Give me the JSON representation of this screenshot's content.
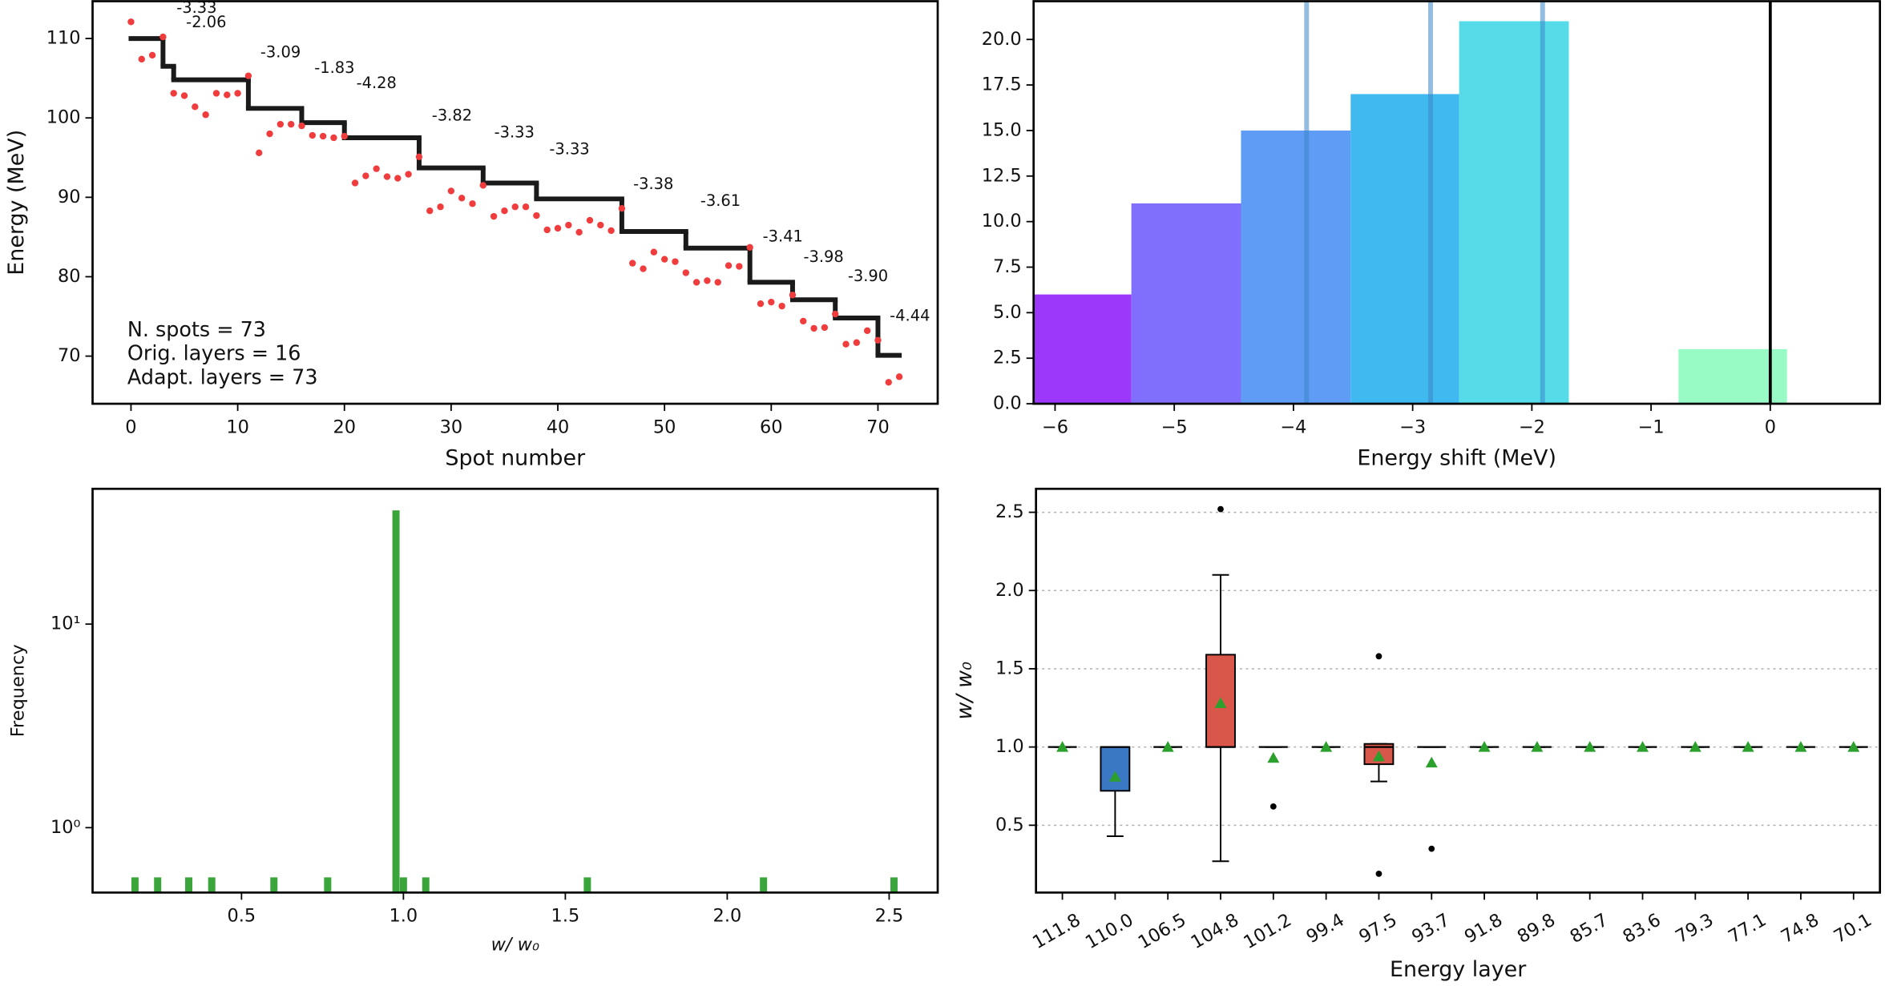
{
  "chart_data": [
    {
      "type": "line",
      "xlabel": "Spot number",
      "ylabel": "Energy (MeV)",
      "xlim": [
        -3.6,
        75.6
      ],
      "ylim": [
        64,
        114.7
      ],
      "xticks": [
        0,
        10,
        20,
        30,
        40,
        50,
        60,
        70
      ],
      "yticks": [
        70,
        80,
        90,
        100,
        110
      ],
      "step": {
        "bins": [
          0,
          3,
          4,
          11,
          16,
          20,
          27,
          33,
          38,
          46,
          52,
          58,
          62,
          66,
          70,
          72
        ],
        "values": [
          110.0,
          106.5,
          104.8,
          101.2,
          99.4,
          97.5,
          93.7,
          91.8,
          89.8,
          85.7,
          83.6,
          79.3,
          77.1,
          74.8,
          70.1
        ],
        "color": "#1a1a1a"
      },
      "points": {
        "x": [
          0,
          1,
          2,
          3,
          4,
          5,
          6,
          7,
          8,
          9,
          10,
          11,
          12,
          13,
          14,
          15,
          16,
          17,
          18,
          19,
          20,
          21,
          22,
          23,
          24,
          25,
          26,
          27,
          28,
          29,
          30,
          31,
          32,
          33,
          34,
          35,
          36,
          37,
          38,
          39,
          40,
          41,
          42,
          43,
          44,
          45,
          46,
          47,
          48,
          49,
          50,
          51,
          52,
          53,
          54,
          55,
          56,
          57,
          58,
          59,
          60,
          61,
          62,
          63,
          64,
          65,
          66,
          67,
          68,
          69,
          70,
          71,
          72
        ],
        "values": [
          112.1,
          107.4,
          107.9,
          110.2,
          103.1,
          102.8,
          101.4,
          100.4,
          103.1,
          102.9,
          103.1,
          105.3,
          95.6,
          98.0,
          99.2,
          99.2,
          99.0,
          97.8,
          97.7,
          97.5,
          97.7,
          91.8,
          92.7,
          93.6,
          92.6,
          92.4,
          92.9,
          95.1,
          88.3,
          88.8,
          90.8,
          89.9,
          89.2,
          91.5,
          87.6,
          88.3,
          88.8,
          88.8,
          87.7,
          85.9,
          86.1,
          86.5,
          85.6,
          87.1,
          86.5,
          85.8,
          88.6,
          81.7,
          81.0,
          83.1,
          82.2,
          81.9,
          80.5,
          79.3,
          79.5,
          79.3,
          81.4,
          81.3,
          83.7,
          76.6,
          76.8,
          76.3,
          77.7,
          74.4,
          73.5,
          73.6,
          75.3,
          71.5,
          71.7,
          73.2,
          72.0,
          66.7,
          67.4
        ],
        "color": "#f03c3c"
      },
      "annotations": [
        "-3.33",
        "-2.06",
        "-3.09",
        "-1.83",
        "-4.28",
        "-3.82",
        "-3.33",
        "-3.33",
        "-3.38",
        "-3.61",
        "-3.41",
        "-3.98",
        "-3.90",
        "-4.44"
      ],
      "text_box": [
        "N. spots = 73",
        "Orig. layers = 16",
        "Adapt. layers = 73"
      ]
    },
    {
      "type": "histogram",
      "xlabel": "Energy shift (MeV)",
      "xlim": [
        -6.18,
        0.92
      ],
      "ylim": [
        0,
        22.1
      ],
      "xticks": [
        {
          "value": -6,
          "label": "−6"
        },
        {
          "value": -5,
          "label": "−5"
        },
        {
          "value": -4,
          "label": "−4"
        },
        {
          "value": -3,
          "label": "−3"
        },
        {
          "value": -2,
          "label": "−2"
        },
        {
          "value": -1,
          "label": "−1"
        },
        0
      ],
      "yticks": [
        {
          "value": 0,
          "label": "0.0"
        },
        2.5,
        {
          "value": 5,
          "label": "5.0"
        },
        7.5,
        {
          "value": 10,
          "label": "10.0"
        },
        12.5,
        {
          "value": 15,
          "label": "15.0"
        },
        17.5,
        {
          "value": 20,
          "label": "20.0"
        }
      ],
      "bins": [
        -6.27,
        -5.36,
        -4.44,
        -3.52,
        -2.61,
        -1.69,
        -0.77,
        0.14
      ],
      "values": [
        6,
        11,
        15,
        17,
        21,
        0,
        3
      ],
      "colors": [
        "#9b38f9",
        "#7f6ffc",
        "#5f9cf5",
        "#3fb9ef",
        "#55dce8",
        "#77efd6",
        "#98fbc6"
      ],
      "vlines": [
        -3.89,
        -2.85,
        -1.91,
        0
      ],
      "vline_colors": [
        "#3b86c6",
        "#3b86c6",
        "#3b86c6",
        "#000000"
      ]
    },
    {
      "type": "bar",
      "xlabel": "w/ w₀",
      "ylabel": "Frequency",
      "xlim": [
        0.04,
        2.65
      ],
      "ylim": [
        0.48,
        46.2
      ],
      "ylog": true,
      "xticks": [
        0.5,
        {
          "value": 1.0,
          "label": "1.0"
        },
        1.5,
        {
          "value": 2.0,
          "label": "2.0"
        },
        2.5
      ],
      "yticks": [
        {
          "value": 1,
          "label": "10⁰"
        },
        {
          "value": 10,
          "label": "10¹"
        }
      ],
      "x": [
        0.171,
        0.241,
        0.337,
        0.408,
        0.6,
        0.766,
        0.977,
        1.0,
        1.069,
        1.568,
        2.112,
        2.515
      ],
      "values": [
        0.57,
        0.57,
        0.57,
        0.57,
        0.57,
        0.57,
        36.2,
        0.57,
        0.57,
        0.57,
        0.57,
        0.57
      ],
      "color": "#3aa53a"
    },
    {
      "type": "box",
      "xlabel": "Energy layer",
      "ylabel": "w/ w₀",
      "ylim": [
        0.07,
        2.65
      ],
      "grid": true,
      "yticks": [
        0.5,
        {
          "value": 1.0,
          "label": "1.0"
        },
        1.5,
        {
          "value": 2.0,
          "label": "2.0"
        },
        2.5
      ],
      "categories": [
        "111.8",
        "110.0",
        "106.5",
        "104.8",
        "101.2",
        "99.4",
        "97.5",
        "93.7",
        "91.8",
        "89.8",
        "85.7",
        "83.6",
        "79.3",
        "77.1",
        "74.8",
        "70.1"
      ],
      "mean_color": "#2ca02c",
      "boxes": [
        {
          "min": 1,
          "q1": 1,
          "median": 1,
          "q3": 1,
          "max": 1,
          "mean": 1,
          "fliers": []
        },
        {
          "min": 0.43,
          "q1": 0.72,
          "median": 1.0,
          "q3": 1.0,
          "max": 1.0,
          "mean": 0.81,
          "fliers": [],
          "color": "#3a78c3"
        },
        {
          "min": 1,
          "q1": 1,
          "median": 1,
          "q3": 1,
          "max": 1,
          "mean": 1,
          "fliers": []
        },
        {
          "min": 0.27,
          "q1": 1.0,
          "median": 1.0,
          "q3": 1.59,
          "max": 2.1,
          "mean": 1.28,
          "fliers": [
            2.52
          ],
          "color": "#d9574a"
        },
        {
          "min": 1,
          "q1": 1,
          "median": 1,
          "q3": 1,
          "max": 1,
          "mean": 0.93,
          "fliers": [
            0.62
          ]
        },
        {
          "min": 1,
          "q1": 1,
          "median": 1,
          "q3": 1,
          "max": 1,
          "mean": 1,
          "fliers": []
        },
        {
          "min": 0.78,
          "q1": 0.89,
          "median": 1.0,
          "q3": 1.02,
          "max": 1.02,
          "mean": 0.94,
          "fliers": [
            1.58,
            0.19
          ],
          "color": "#d9574a"
        },
        {
          "min": 1,
          "q1": 1,
          "median": 1,
          "q3": 1,
          "max": 1,
          "mean": 0.9,
          "fliers": [
            0.35
          ]
        },
        {
          "min": 1,
          "q1": 1,
          "median": 1,
          "q3": 1,
          "max": 1,
          "mean": 1,
          "fliers": []
        },
        {
          "min": 1,
          "q1": 1,
          "median": 1,
          "q3": 1,
          "max": 1,
          "mean": 1,
          "fliers": []
        },
        {
          "min": 1,
          "q1": 1,
          "median": 1,
          "q3": 1,
          "max": 1,
          "mean": 1,
          "fliers": []
        },
        {
          "min": 1,
          "q1": 1,
          "median": 1,
          "q3": 1,
          "max": 1,
          "mean": 1,
          "fliers": []
        },
        {
          "min": 1,
          "q1": 1,
          "median": 1,
          "q3": 1,
          "max": 1,
          "mean": 1,
          "fliers": []
        },
        {
          "min": 1,
          "q1": 1,
          "median": 1,
          "q3": 1,
          "max": 1,
          "mean": 1,
          "fliers": []
        },
        {
          "min": 1,
          "q1": 1,
          "median": 1,
          "q3": 1,
          "max": 1,
          "mean": 1,
          "fliers": []
        },
        {
          "min": 1,
          "q1": 1,
          "median": 1,
          "q3": 1,
          "max": 1,
          "mean": 1,
          "fliers": []
        }
      ]
    }
  ]
}
